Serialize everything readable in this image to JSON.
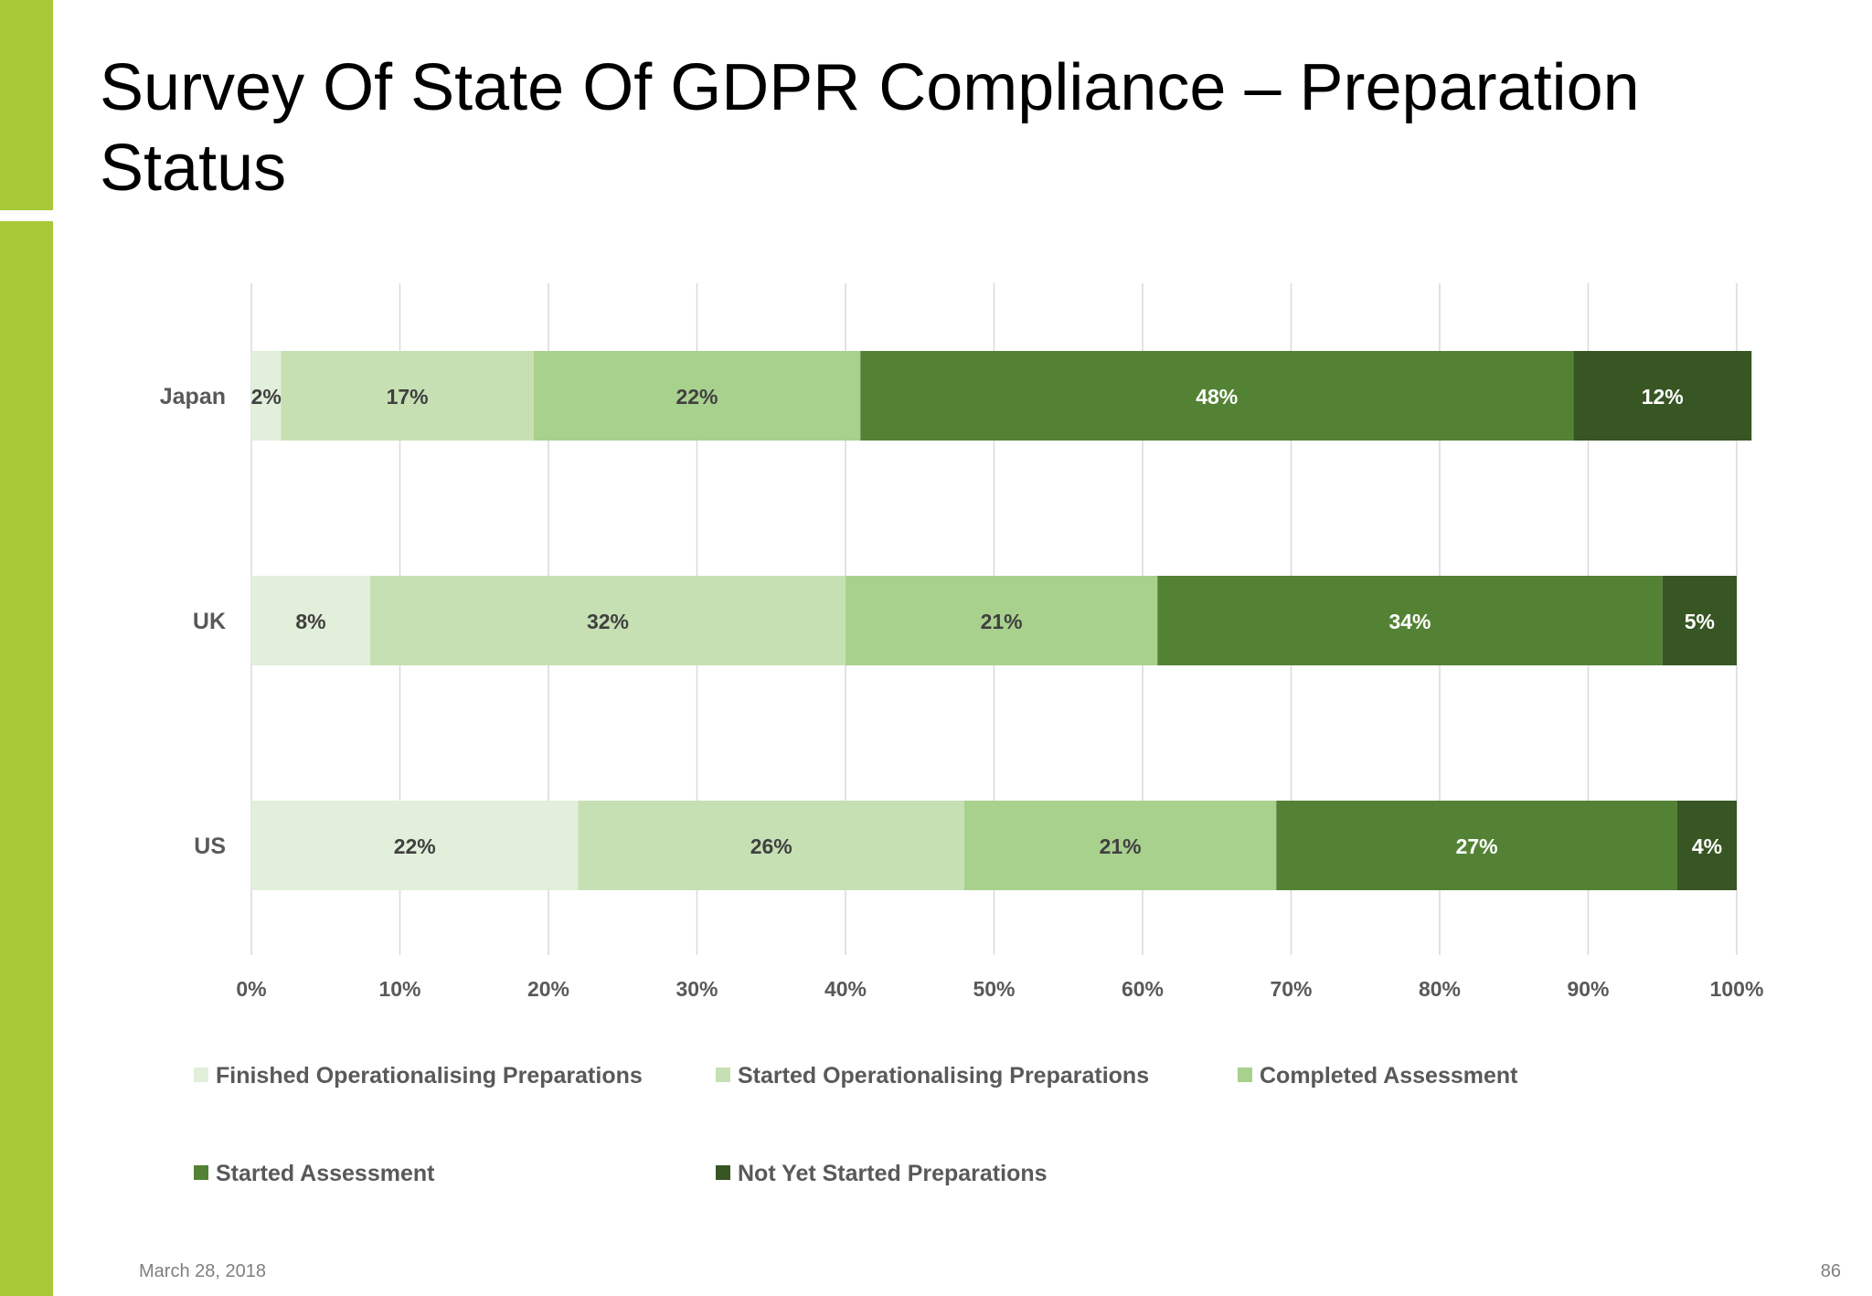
{
  "slide": {
    "title": "Survey Of State Of GDPR Compliance – Preparation Status",
    "date": "March 28, 2018",
    "page_number": "86"
  },
  "colors": {
    "accent": "#a6c935",
    "grid": "#d9d9d9",
    "tick_text": "#595959",
    "series": [
      "#e2efda",
      "#c6e0b4",
      "#a9d18e",
      "#548235",
      "#375623"
    ],
    "label_dark": "#404040",
    "label_light": "#ffffff"
  },
  "chart_data": {
    "type": "bar",
    "orientation": "horizontal",
    "stacked": "percent",
    "categories": [
      "Japan",
      "UK",
      "US"
    ],
    "series": [
      {
        "name": "Finished Operationalising Preparations",
        "values": [
          2,
          8,
          22
        ],
        "labels": [
          "2%",
          "8%",
          "22%"
        ]
      },
      {
        "name": "Started Operationalising Preparations",
        "values": [
          17,
          32,
          26
        ],
        "labels": [
          "17%",
          "32%",
          "26%"
        ]
      },
      {
        "name": "Completed Assessment",
        "values": [
          22,
          21,
          21
        ],
        "labels": [
          "22%",
          "21%",
          "21%"
        ]
      },
      {
        "name": "Started Assessment",
        "values": [
          48,
          34,
          27
        ],
        "labels": [
          "48%",
          "34%",
          "27%"
        ]
      },
      {
        "name": "Not Yet Started Preparations",
        "values": [
          12,
          5,
          4
        ],
        "labels": [
          "12%",
          "5%",
          "4%"
        ]
      }
    ],
    "xlim": [
      0,
      100
    ],
    "xticks": [
      "0%",
      "10%",
      "20%",
      "30%",
      "40%",
      "50%",
      "60%",
      "70%",
      "80%",
      "90%",
      "100%"
    ],
    "grid": true,
    "legend_position": "bottom"
  }
}
